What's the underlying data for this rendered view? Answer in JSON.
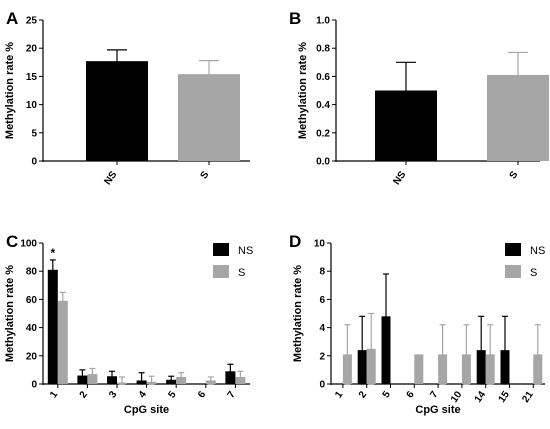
{
  "chart_data": [
    {
      "panel": "A",
      "type": "bar",
      "ylabel": "Methylation rate %",
      "ylim": [
        0,
        25
      ],
      "yticks": [
        "0",
        "5",
        "10",
        "15",
        "20",
        "25"
      ],
      "categories": [
        "NS",
        "S"
      ],
      "values": [
        17.7,
        15.4
      ],
      "errors": [
        2.0,
        2.4
      ],
      "colors": [
        "#000000",
        "#a6a6a6"
      ]
    },
    {
      "panel": "B",
      "type": "bar",
      "ylabel": "Methylation rate %",
      "ylim": [
        0,
        1.0
      ],
      "yticks": [
        "0.0",
        "0.2",
        "0.4",
        "0.6",
        "0.8",
        "1.0"
      ],
      "categories": [
        "NS",
        "S"
      ],
      "values": [
        0.5,
        0.61
      ],
      "errors": [
        0.2,
        0.16
      ],
      "colors": [
        "#000000",
        "#a6a6a6"
      ]
    },
    {
      "panel": "C",
      "type": "bar",
      "ylabel": "Methylation rate %",
      "xlabel": "CpG site",
      "ylim": [
        0,
        100
      ],
      "yticks": [
        "0",
        "20",
        "40",
        "60",
        "80",
        "100"
      ],
      "categories": [
        "1",
        "2",
        "3",
        "4",
        "5",
        "6",
        "7"
      ],
      "annotations": [
        {
          "category": "1",
          "text": "*"
        }
      ],
      "series": [
        {
          "name": "NS",
          "color": "#000000",
          "values": [
            81,
            6,
            5.5,
            2.5,
            3,
            0,
            9
          ],
          "errors": [
            7,
            4,
            3.5,
            5.5,
            2.5,
            0,
            5
          ]
        },
        {
          "name": "S",
          "color": "#a6a6a6",
          "values": [
            59,
            7,
            1,
            1.5,
            5,
            2.5,
            5
          ],
          "errors": [
            6,
            4,
            4,
            4,
            3,
            2.5,
            4
          ]
        }
      ]
    },
    {
      "panel": "D",
      "type": "bar",
      "ylabel": "Methylation rate %",
      "xlabel": "CpG site",
      "ylim": [
        0,
        10
      ],
      "yticks": [
        "0",
        "2",
        "4",
        "6",
        "8",
        "10"
      ],
      "categories": [
        "1",
        "2",
        "5",
        "6",
        "7",
        "10",
        "14",
        "15",
        "21"
      ],
      "series": [
        {
          "name": "NS",
          "color": "#000000",
          "values": [
            0,
            2.4,
            4.8,
            0,
            0,
            0,
            2.4,
            2.4,
            0
          ],
          "errors": [
            0,
            2.4,
            3.0,
            0,
            0,
            0,
            2.4,
            2.4,
            0
          ]
        },
        {
          "name": "S",
          "color": "#a6a6a6",
          "values": [
            2.1,
            2.5,
            0,
            2.1,
            2.1,
            2.1,
            2.1,
            0,
            2.1
          ],
          "errors": [
            2.1,
            2.5,
            0,
            0,
            2.1,
            2.1,
            2.1,
            0,
            2.1
          ]
        }
      ]
    }
  ]
}
